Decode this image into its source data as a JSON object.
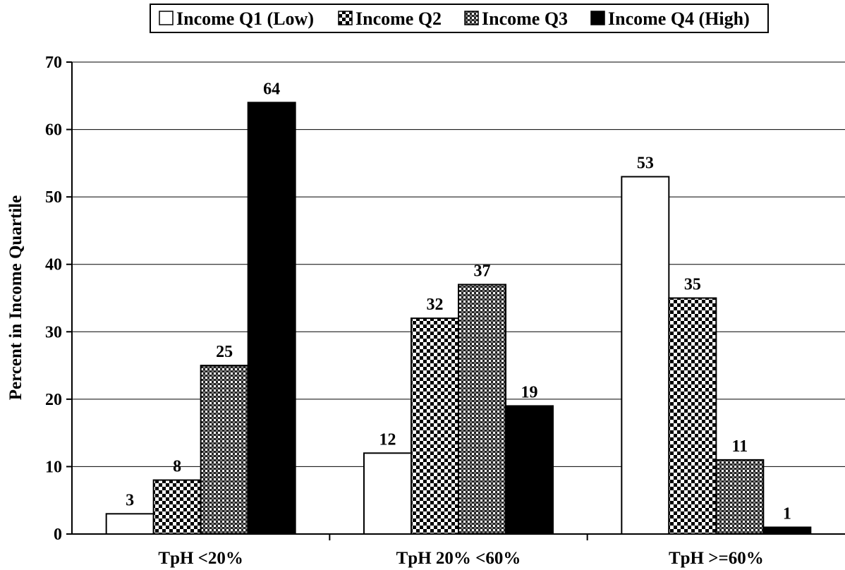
{
  "chart_data": {
    "type": "bar",
    "ylabel": "Percent in Income Quartile",
    "xlabel": "",
    "ylim": [
      0,
      70
    ],
    "yticks": [
      0,
      10,
      20,
      30,
      40,
      50,
      60,
      70
    ],
    "grid": true,
    "legend_position": "top-center",
    "categories": [
      "TpH <20%",
      "TpH 20% <60%",
      "TpH >=60%"
    ],
    "series": [
      {
        "name": "Income Q1 (Low)",
        "values": [
          3,
          12,
          53
        ],
        "fill": "white"
      },
      {
        "name": "Income Q2",
        "values": [
          8,
          32,
          35
        ],
        "fill": "checker"
      },
      {
        "name": "Income Q3",
        "values": [
          25,
          37,
          11
        ],
        "fill": "dense-checker"
      },
      {
        "name": "Income Q4 (High)",
        "values": [
          64,
          19,
          1
        ],
        "fill": "black"
      }
    ],
    "colors": {
      "bar_stroke": "#000000",
      "solid": "#000000",
      "background": "#ffffff",
      "grid": "#000000"
    }
  }
}
